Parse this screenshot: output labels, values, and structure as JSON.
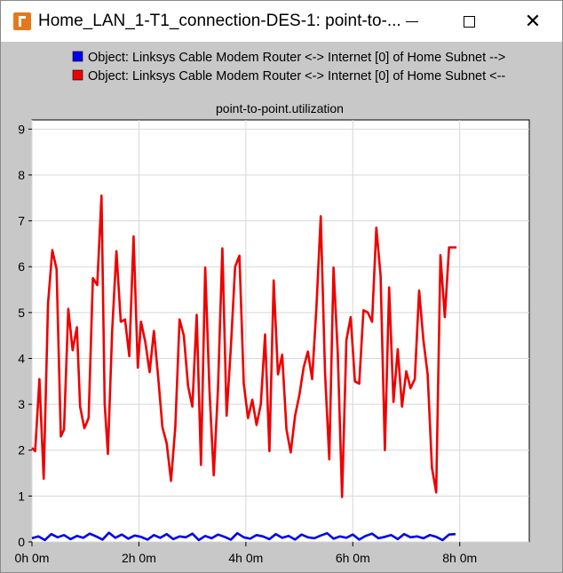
{
  "window": {
    "title": "Home_LAN_1-T1_connection-DES-1: point-to-...",
    "minimize_icon": "minimize-icon",
    "maximize_icon": "maximize-icon",
    "close_icon": "close-icon"
  },
  "colors": {
    "series_blue": "#0000ee",
    "series_red": "#ee0000",
    "plot_bg": "#ffffff",
    "frame_bg": "#c8c8c8"
  },
  "chart_data": {
    "type": "line",
    "title": "point-to-point.utilization",
    "xlabel": "",
    "ylabel": "",
    "x_unit": "hours",
    "xlim": [
      0,
      9.3
    ],
    "ylim": [
      0,
      9.2
    ],
    "x_ticks": [
      {
        "value": 0,
        "label": "0h 0m"
      },
      {
        "value": 2,
        "label": "2h 0m"
      },
      {
        "value": 4,
        "label": "4h 0m"
      },
      {
        "value": 6,
        "label": "6h 0m"
      },
      {
        "value": 8,
        "label": "8h 0m"
      }
    ],
    "y_ticks": [
      0,
      1,
      2,
      3,
      4,
      5,
      6,
      7,
      8,
      9
    ],
    "grid": true,
    "legend_position": "top",
    "series": [
      {
        "name": "Object: Linksys Cable Modem Router <-> Internet [0] of Home Subnet -->",
        "color": "#0000ee",
        "x": [
          0.0,
          0.12,
          0.24,
          0.36,
          0.48,
          0.6,
          0.72,
          0.84,
          0.96,
          1.08,
          1.2,
          1.32,
          1.44,
          1.56,
          1.68,
          1.8,
          1.92,
          2.04,
          2.16,
          2.28,
          2.4,
          2.52,
          2.64,
          2.76,
          2.88,
          3.0,
          3.12,
          3.24,
          3.36,
          3.48,
          3.6,
          3.72,
          3.84,
          3.96,
          4.08,
          4.2,
          4.32,
          4.44,
          4.56,
          4.68,
          4.8,
          4.92,
          5.04,
          5.16,
          5.28,
          5.4,
          5.52,
          5.64,
          5.76,
          5.88,
          6.0,
          6.12,
          6.24,
          6.36,
          6.48,
          6.6,
          6.72,
          6.84,
          6.96,
          7.08,
          7.2,
          7.32,
          7.44,
          7.56,
          7.68,
          7.8,
          7.92
        ],
        "y": [
          0.08,
          0.12,
          0.04,
          0.17,
          0.1,
          0.15,
          0.06,
          0.13,
          0.09,
          0.18,
          0.12,
          0.05,
          0.2,
          0.09,
          0.16,
          0.07,
          0.14,
          0.11,
          0.05,
          0.15,
          0.09,
          0.17,
          0.06,
          0.12,
          0.1,
          0.18,
          0.04,
          0.13,
          0.08,
          0.16,
          0.11,
          0.05,
          0.19,
          0.1,
          0.07,
          0.15,
          0.12,
          0.06,
          0.17,
          0.09,
          0.13,
          0.05,
          0.16,
          0.1,
          0.08,
          0.14,
          0.19,
          0.07,
          0.12,
          0.09,
          0.16,
          0.05,
          0.13,
          0.18,
          0.08,
          0.11,
          0.15,
          0.06,
          0.17,
          0.1,
          0.12,
          0.08,
          0.15,
          0.11,
          0.04,
          0.16,
          0.17
        ]
      },
      {
        "name": "Object: Linksys Cable Modem Router <-> Internet [0] of Home Subnet <--",
        "color": "#ee0000",
        "x": [
          0.0,
          0.06,
          0.14,
          0.22,
          0.3,
          0.38,
          0.46,
          0.54,
          0.6,
          0.68,
          0.76,
          0.84,
          0.9,
          0.98,
          1.06,
          1.14,
          1.22,
          1.3,
          1.36,
          1.42,
          1.5,
          1.58,
          1.66,
          1.74,
          1.82,
          1.9,
          1.98,
          2.04,
          2.12,
          2.2,
          2.28,
          2.36,
          2.44,
          2.52,
          2.6,
          2.68,
          2.76,
          2.84,
          2.92,
          3.0,
          3.08,
          3.16,
          3.24,
          3.32,
          3.4,
          3.48,
          3.56,
          3.64,
          3.72,
          3.8,
          3.88,
          3.96,
          4.04,
          4.12,
          4.2,
          4.28,
          4.36,
          4.44,
          4.52,
          4.6,
          4.68,
          4.76,
          4.84,
          4.92,
          5.0,
          5.08,
          5.16,
          5.24,
          5.32,
          5.4,
          5.48,
          5.56,
          5.64,
          5.72,
          5.8,
          5.88,
          5.96,
          6.04,
          6.12,
          6.2,
          6.28,
          6.36,
          6.44,
          6.52,
          6.6,
          6.68,
          6.76,
          6.84,
          6.92,
          7.0,
          7.08,
          7.16,
          7.24,
          7.32,
          7.4,
          7.48,
          7.56,
          7.64,
          7.72,
          7.8,
          7.88,
          7.94
        ],
        "y": [
          2.05,
          1.98,
          3.55,
          1.38,
          5.2,
          6.36,
          5.95,
          2.3,
          2.45,
          5.08,
          4.18,
          4.68,
          2.95,
          2.48,
          2.7,
          5.75,
          5.6,
          7.55,
          3.0,
          1.92,
          4.6,
          6.34,
          4.8,
          4.85,
          4.05,
          6.66,
          3.8,
          4.8,
          4.35,
          3.7,
          4.6,
          3.6,
          2.5,
          2.15,
          1.33,
          2.5,
          4.85,
          4.5,
          3.4,
          2.95,
          4.95,
          1.68,
          5.98,
          3.3,
          1.45,
          3.35,
          6.4,
          2.75,
          4.25,
          6.0,
          6.24,
          3.45,
          2.7,
          3.1,
          2.55,
          3.0,
          4.52,
          1.98,
          5.7,
          3.65,
          4.08,
          2.45,
          1.95,
          2.75,
          3.2,
          3.8,
          4.15,
          3.55,
          5.1,
          7.1,
          3.7,
          1.8,
          5.98,
          4.1,
          0.98,
          4.4,
          4.9,
          3.5,
          3.45,
          5.05,
          5.0,
          4.8,
          6.85,
          5.8,
          2.0,
          5.55,
          3.05,
          4.2,
          2.95,
          3.72,
          3.35,
          3.55,
          5.48,
          4.4,
          3.65,
          1.62,
          1.08,
          6.25,
          4.9,
          6.42,
          6.42,
          6.42
        ]
      }
    ]
  }
}
